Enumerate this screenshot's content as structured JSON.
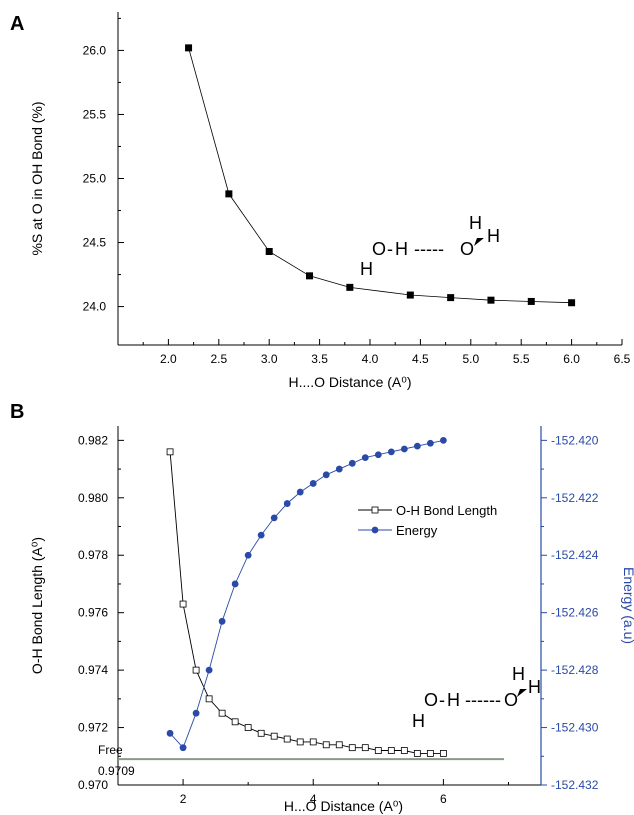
{
  "chart_data": [
    {
      "panel": "A",
      "type": "line",
      "xlabel": "H....O Distance (A⁰)",
      "ylabel": "%S at O in OH Bond (%)",
      "xlim": [
        1.5,
        6.5
      ],
      "ylim": [
        23.7,
        26.3
      ],
      "xticks": [
        "2.0",
        "2.5",
        "3.0",
        "3.5",
        "4.0",
        "4.5",
        "5.0",
        "5.5",
        "6.0",
        "6.5"
      ],
      "yticks": [
        "24.0",
        "24.5",
        "25.0",
        "25.5",
        "26.0"
      ],
      "series": [
        {
          "marker": "filled-square",
          "color": "#000000",
          "x": [
            2.2,
            2.6,
            3.0,
            3.4,
            3.8,
            4.4,
            4.8,
            5.2,
            5.6,
            6.0
          ],
          "y": [
            26.02,
            24.88,
            24.43,
            24.24,
            24.15,
            24.09,
            24.07,
            24.05,
            24.04,
            24.03
          ]
        }
      ],
      "molecule": {
        "h1": "H",
        "o1": "O",
        "h2": "H",
        "bond": "-",
        "hb": "-----",
        "o2": "O",
        "h3": "H",
        "h4": "H"
      }
    },
    {
      "panel": "B",
      "type": "line",
      "xlabel": "H...O Distance (A⁰)",
      "ylabel": "O-H Bond Length (A⁰)",
      "ylabel_right": "Energy (a.u)",
      "xlim": [
        1.0,
        7.5
      ],
      "ylim": [
        0.97,
        0.9825
      ],
      "ylim_right": [
        -152.432,
        -152.4195
      ],
      "xticks": [
        "2",
        "4",
        "6"
      ],
      "yticks": [
        "0.970",
        "0.972",
        "0.974",
        "0.976",
        "0.978",
        "0.980",
        "0.982"
      ],
      "yticks_right": [
        "-152.432",
        "-152.430",
        "-152.428",
        "-152.426",
        "-152.424",
        "-152.422",
        "-152.420"
      ],
      "reference_line": {
        "label_top": "Free",
        "label_bottom": "0.9709",
        "y": 0.9709,
        "color": "#8a9a8a"
      },
      "series": [
        {
          "name": "O-H Bond Length",
          "marker": "open-square",
          "color": "#000000",
          "axis": "left",
          "x": [
            1.8,
            2.0,
            2.2,
            2.4,
            2.6,
            2.8,
            3.0,
            3.2,
            3.4,
            3.6,
            3.8,
            4.0,
            4.2,
            4.4,
            4.6,
            4.8,
            5.0,
            5.2,
            5.4,
            5.6,
            5.8,
            6.0
          ],
          "y": [
            0.9816,
            0.9763,
            0.974,
            0.973,
            0.9725,
            0.9722,
            0.972,
            0.9718,
            0.9717,
            0.9716,
            0.9715,
            0.9715,
            0.9714,
            0.9714,
            0.9713,
            0.9713,
            0.9712,
            0.9712,
            0.9712,
            0.9711,
            0.9711,
            0.9711
          ]
        },
        {
          "name": "Energy",
          "marker": "filled-circle",
          "color": "#2a4aa8",
          "axis": "right",
          "x": [
            1.8,
            2.0,
            2.2,
            2.4,
            2.6,
            2.8,
            3.0,
            3.2,
            3.4,
            3.6,
            3.8,
            4.0,
            4.2,
            4.4,
            4.6,
            4.8,
            5.0,
            5.2,
            5.4,
            5.6,
            5.8,
            6.0
          ],
          "y": [
            -152.4302,
            -152.4307,
            -152.4295,
            -152.428,
            -152.4263,
            -152.425,
            -152.424,
            -152.4233,
            -152.4227,
            -152.4222,
            -152.4218,
            -152.4215,
            -152.4212,
            -152.421,
            -152.4208,
            -152.4206,
            -152.4205,
            -152.4204,
            -152.4203,
            -152.4202,
            -152.4201,
            -152.42
          ]
        }
      ],
      "molecule": {
        "h1": "H",
        "o1": "O",
        "h2": "H",
        "bond": "-",
        "hb": "------",
        "o2": "O",
        "h3": "H",
        "h4": "H"
      }
    }
  ]
}
